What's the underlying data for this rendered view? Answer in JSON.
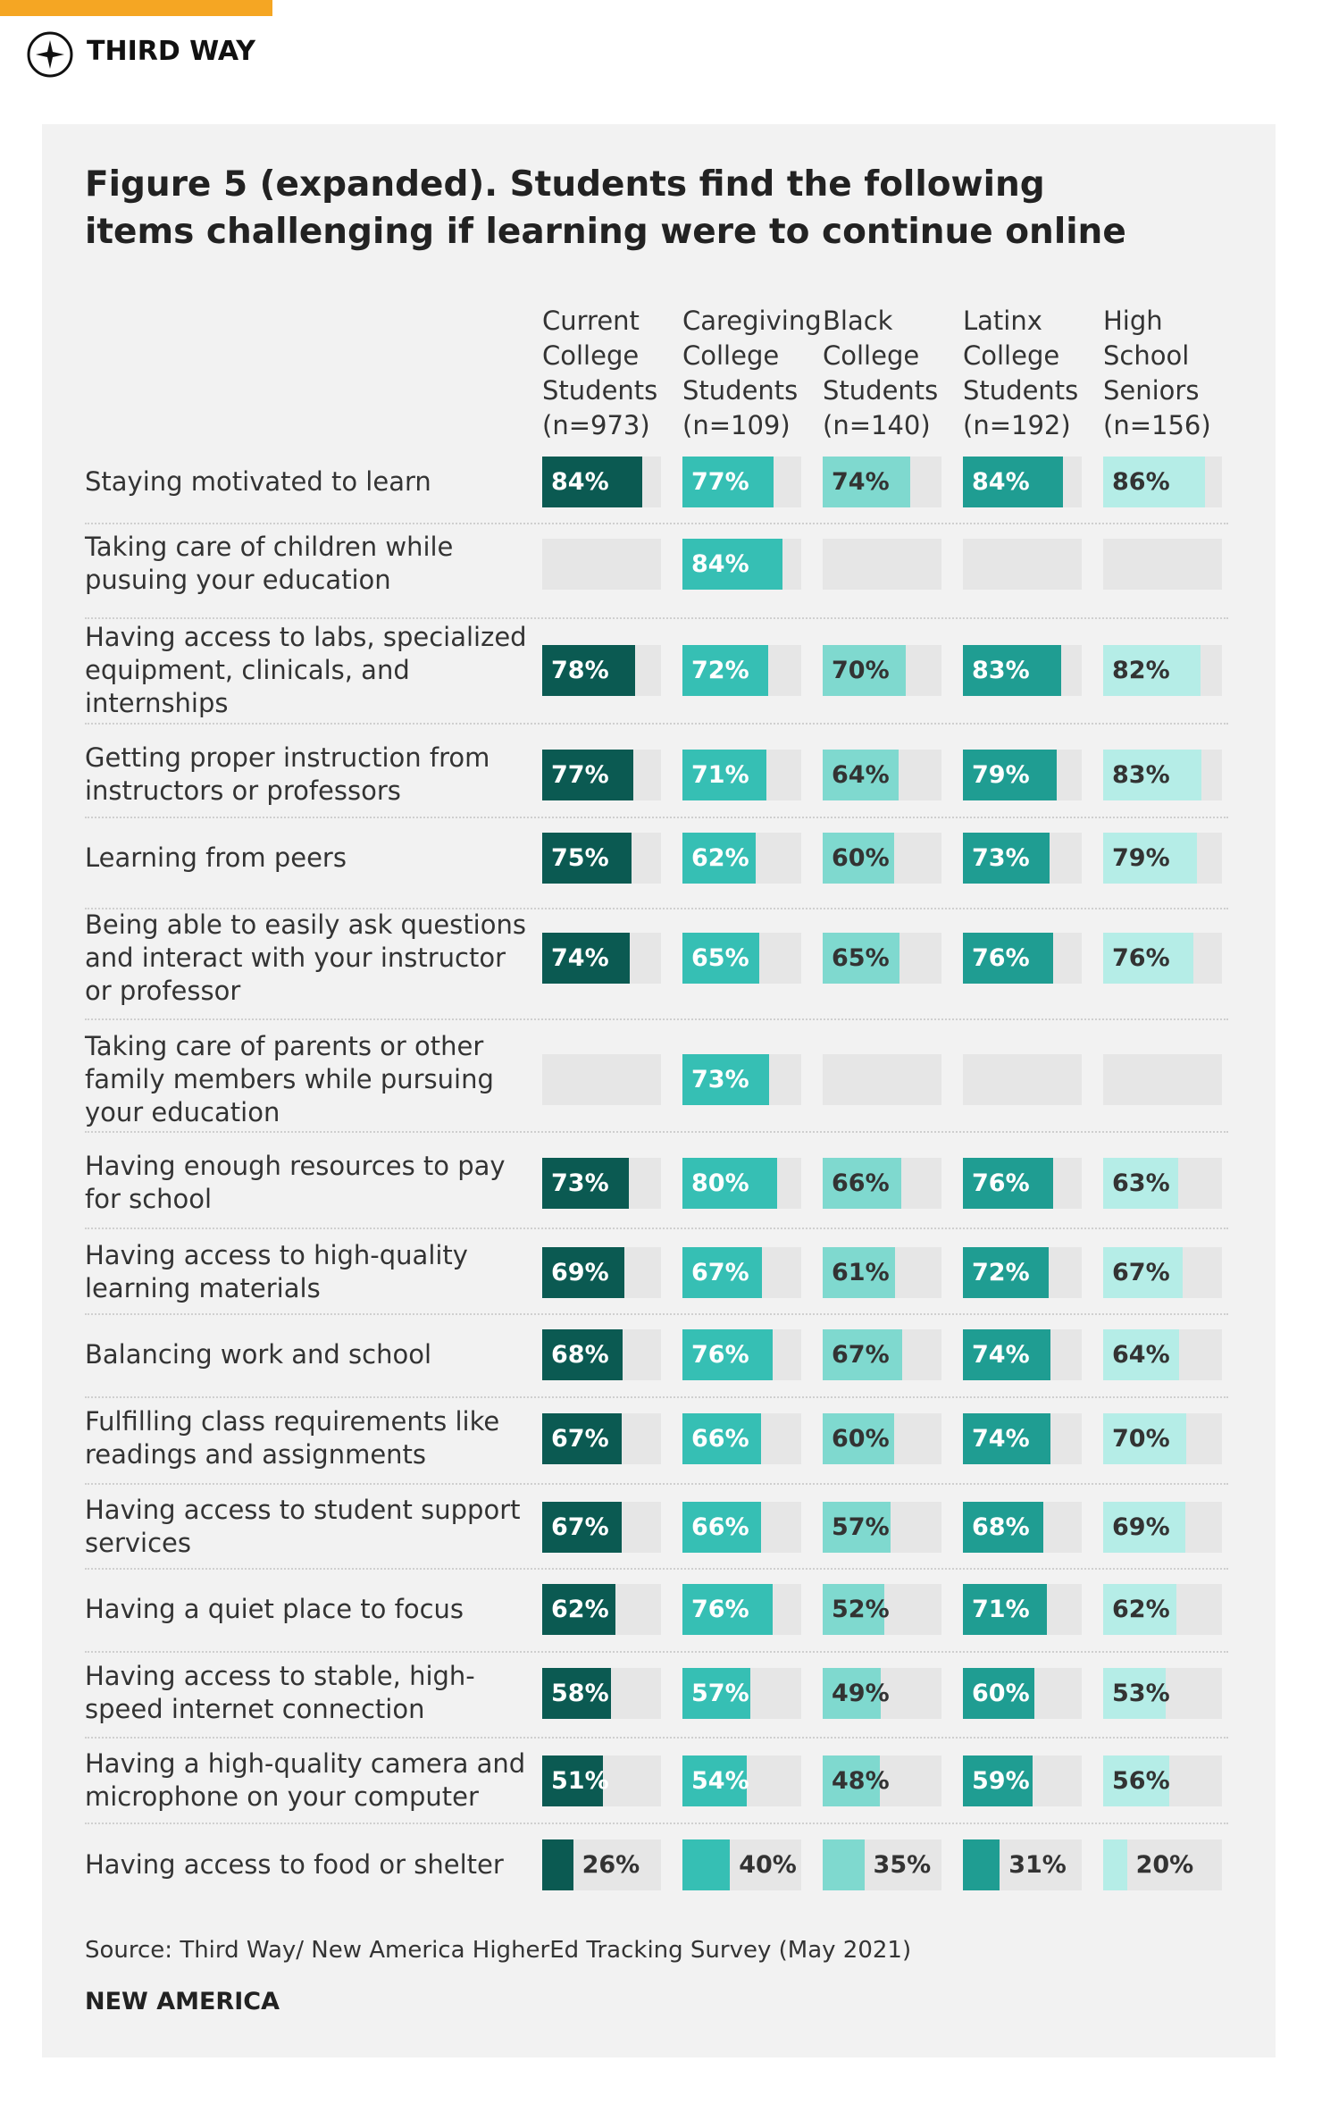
{
  "header": {
    "brand": "THIRD WAY"
  },
  "chart_data": {
    "type": "bar",
    "title": "Figure 5 (expanded). Students find the following items challenging if learning were to continue online",
    "categories": [
      "Staying motivated to learn",
      "Taking care of children while pusuing your education",
      "Having access to labs, specialized equipment, clinicals, and internships",
      "Getting proper instruction from instructors or professors",
      "Learning from peers",
      "Being able to easily ask questions and interact with your instructor or professor",
      "Taking care of parents or other family members while pursuing your education",
      "Having enough resources to pay for school",
      "Having access to high-quality learning materials",
      "Balancing work and school",
      "Fulfilling class requirements like readings and assignments",
      "Having access to student support services",
      "Having a quiet place to focus",
      "Having access to stable, high-speed internet connection",
      "Having a high-quality camera and microphone on your computer",
      "Having access to food or shelter"
    ],
    "xlim": [
      0,
      100
    ],
    "series": [
      {
        "name": "Current College Students (n=973)",
        "color": "#0b5a52",
        "label_color": "#ffffff",
        "values": [
          84,
          null,
          78,
          77,
          75,
          74,
          null,
          73,
          69,
          68,
          67,
          67,
          62,
          58,
          51,
          26
        ],
        "value_labels": [
          "84%",
          null,
          "78%",
          "77%",
          "75%",
          "74%",
          null,
          "73%",
          "69%",
          "68%",
          "67%",
          "67%",
          "62%",
          "58%",
          "51%",
          "26%"
        ]
      },
      {
        "name": "Caregiving College Students (n=109)",
        "color": "#36bfb4",
        "label_color": "#ffffff",
        "values": [
          77,
          84,
          72,
          71,
          62,
          65,
          73,
          80,
          67,
          76,
          66,
          66,
          76,
          57,
          54,
          40
        ],
        "value_labels": [
          "77%",
          "84%",
          "72%",
          "71%",
          "62%",
          "65%",
          "73%",
          "80%",
          "67%",
          "76%",
          "66%",
          "66%",
          "76%",
          "57%",
          "54%",
          "40%"
        ]
      },
      {
        "name": "Black College Students (n=140)",
        "color": "#7fd9cf",
        "label_color": "#333333",
        "values": [
          74,
          null,
          70,
          64,
          60,
          65,
          null,
          66,
          61,
          67,
          60,
          57,
          52,
          49,
          48,
          35
        ],
        "value_labels": [
          "74%",
          null,
          "70%",
          "64%",
          "60%",
          "65%",
          null,
          "66%",
          "61%",
          "67%",
          "60%",
          "57%",
          "52%",
          "49%",
          "48%",
          "35%"
        ]
      },
      {
        "name": "Latinx College Students (n=192)",
        "color": "#1f9d92",
        "label_color": "#ffffff",
        "values": [
          84,
          null,
          83,
          79,
          73,
          76,
          null,
          76,
          72,
          74,
          74,
          68,
          71,
          60,
          59,
          31
        ],
        "value_labels": [
          "84%",
          null,
          "83%",
          "79%",
          "73%",
          "76%",
          null,
          "76%",
          "72%",
          "74%",
          "74%",
          "68%",
          "71%",
          "60%",
          "59%",
          "31%"
        ]
      },
      {
        "name": "High School Seniors (n=156)",
        "color": "#b5ede7",
        "label_color": "#333333",
        "values": [
          86,
          null,
          82,
          83,
          79,
          76,
          null,
          63,
          67,
          64,
          70,
          69,
          62,
          53,
          56,
          20
        ],
        "value_labels": [
          "86%",
          null,
          "82%",
          "83%",
          "79%",
          "76%",
          null,
          "63%",
          "67%",
          "64%",
          "70%",
          "69%",
          "62%",
          "53%",
          "56%",
          "20%"
        ]
      }
    ]
  },
  "source": "Source: Third Way/ New America HigherEd Tracking Survey (May 2021)",
  "footer": {
    "brand": "NEW AMERICA"
  }
}
